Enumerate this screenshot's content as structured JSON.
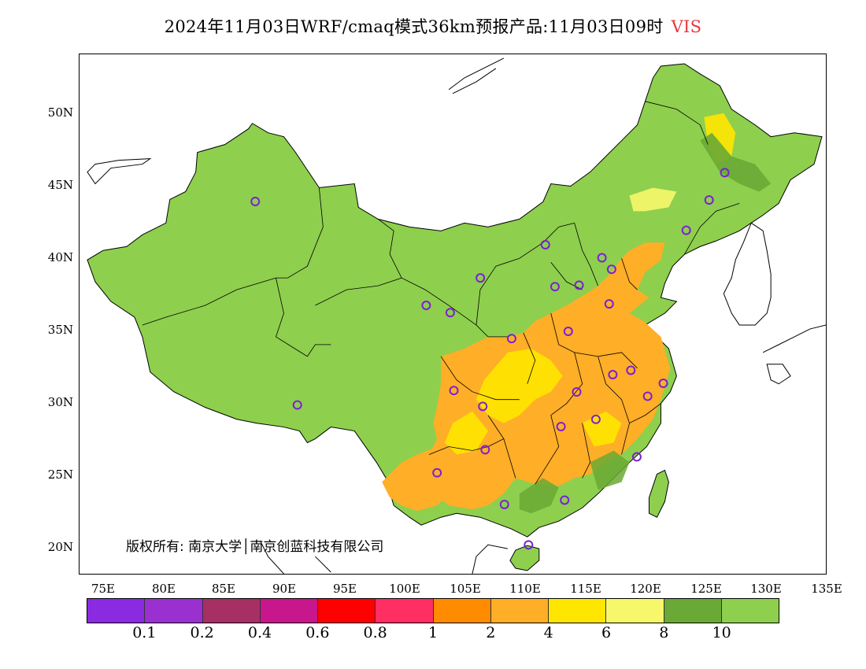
{
  "title": {
    "main": "2024年11月03日WRF/cmaq模式36km预报产品:11月03日09时",
    "variable": "VIS",
    "variable_color": "#e8383b"
  },
  "map": {
    "lon_range": [
      73,
      135
    ],
    "lat_range": [
      18,
      54
    ],
    "lat_ticks": [
      "50N",
      "45N",
      "40N",
      "35N",
      "30N",
      "25N",
      "20N"
    ],
    "lon_ticks": [
      "75E",
      "80E",
      "85E",
      "90E",
      "95E",
      "100E",
      "105E",
      "110E",
      "115E",
      "120E",
      "125E",
      "130E",
      "135E"
    ],
    "copyright": "版权所有: 南京大学│南京创蓝科技有限公司",
    "station_marker_color": "#7b1fd6",
    "stations": [
      {
        "lon": 87.6,
        "lat": 43.8
      },
      {
        "lon": 91.1,
        "lat": 29.7
      },
      {
        "lon": 101.8,
        "lat": 36.6
      },
      {
        "lon": 103.8,
        "lat": 36.1
      },
      {
        "lon": 106.3,
        "lat": 38.5
      },
      {
        "lon": 111.7,
        "lat": 40.8
      },
      {
        "lon": 112.5,
        "lat": 37.9
      },
      {
        "lon": 114.5,
        "lat": 38.0
      },
      {
        "lon": 116.4,
        "lat": 39.9
      },
      {
        "lon": 117.2,
        "lat": 39.1
      },
      {
        "lon": 123.4,
        "lat": 41.8
      },
      {
        "lon": 125.3,
        "lat": 43.9
      },
      {
        "lon": 126.6,
        "lat": 45.8
      },
      {
        "lon": 117.0,
        "lat": 36.7
      },
      {
        "lon": 113.6,
        "lat": 34.8
      },
      {
        "lon": 108.9,
        "lat": 34.3
      },
      {
        "lon": 104.1,
        "lat": 30.7
      },
      {
        "lon": 106.5,
        "lat": 29.6
      },
      {
        "lon": 114.3,
        "lat": 30.6
      },
      {
        "lon": 117.3,
        "lat": 31.8
      },
      {
        "lon": 118.8,
        "lat": 32.1
      },
      {
        "lon": 121.5,
        "lat": 31.2
      },
      {
        "lon": 120.2,
        "lat": 30.3
      },
      {
        "lon": 115.9,
        "lat": 28.7
      },
      {
        "lon": 113.0,
        "lat": 28.2
      },
      {
        "lon": 106.7,
        "lat": 26.6
      },
      {
        "lon": 102.7,
        "lat": 25.0
      },
      {
        "lon": 119.3,
        "lat": 26.1
      },
      {
        "lon": 113.3,
        "lat": 23.1
      },
      {
        "lon": 108.3,
        "lat": 22.8
      },
      {
        "lon": 110.3,
        "lat": 20.0
      }
    ]
  },
  "legend": {
    "colors": [
      "#8a2be2",
      "#9b30d0",
      "#a62f63",
      "#c8168c",
      "#ff0000",
      "#ff2e63",
      "#ff8c00",
      "#ffae27",
      "#ffe600",
      "#f7f76b",
      "#6aa935",
      "#8ecf4e"
    ],
    "labels": [
      "0.1",
      "0.2",
      "0.4",
      "0.6",
      "0.8",
      "1",
      "2",
      "4",
      "6",
      "8",
      "10"
    ]
  }
}
